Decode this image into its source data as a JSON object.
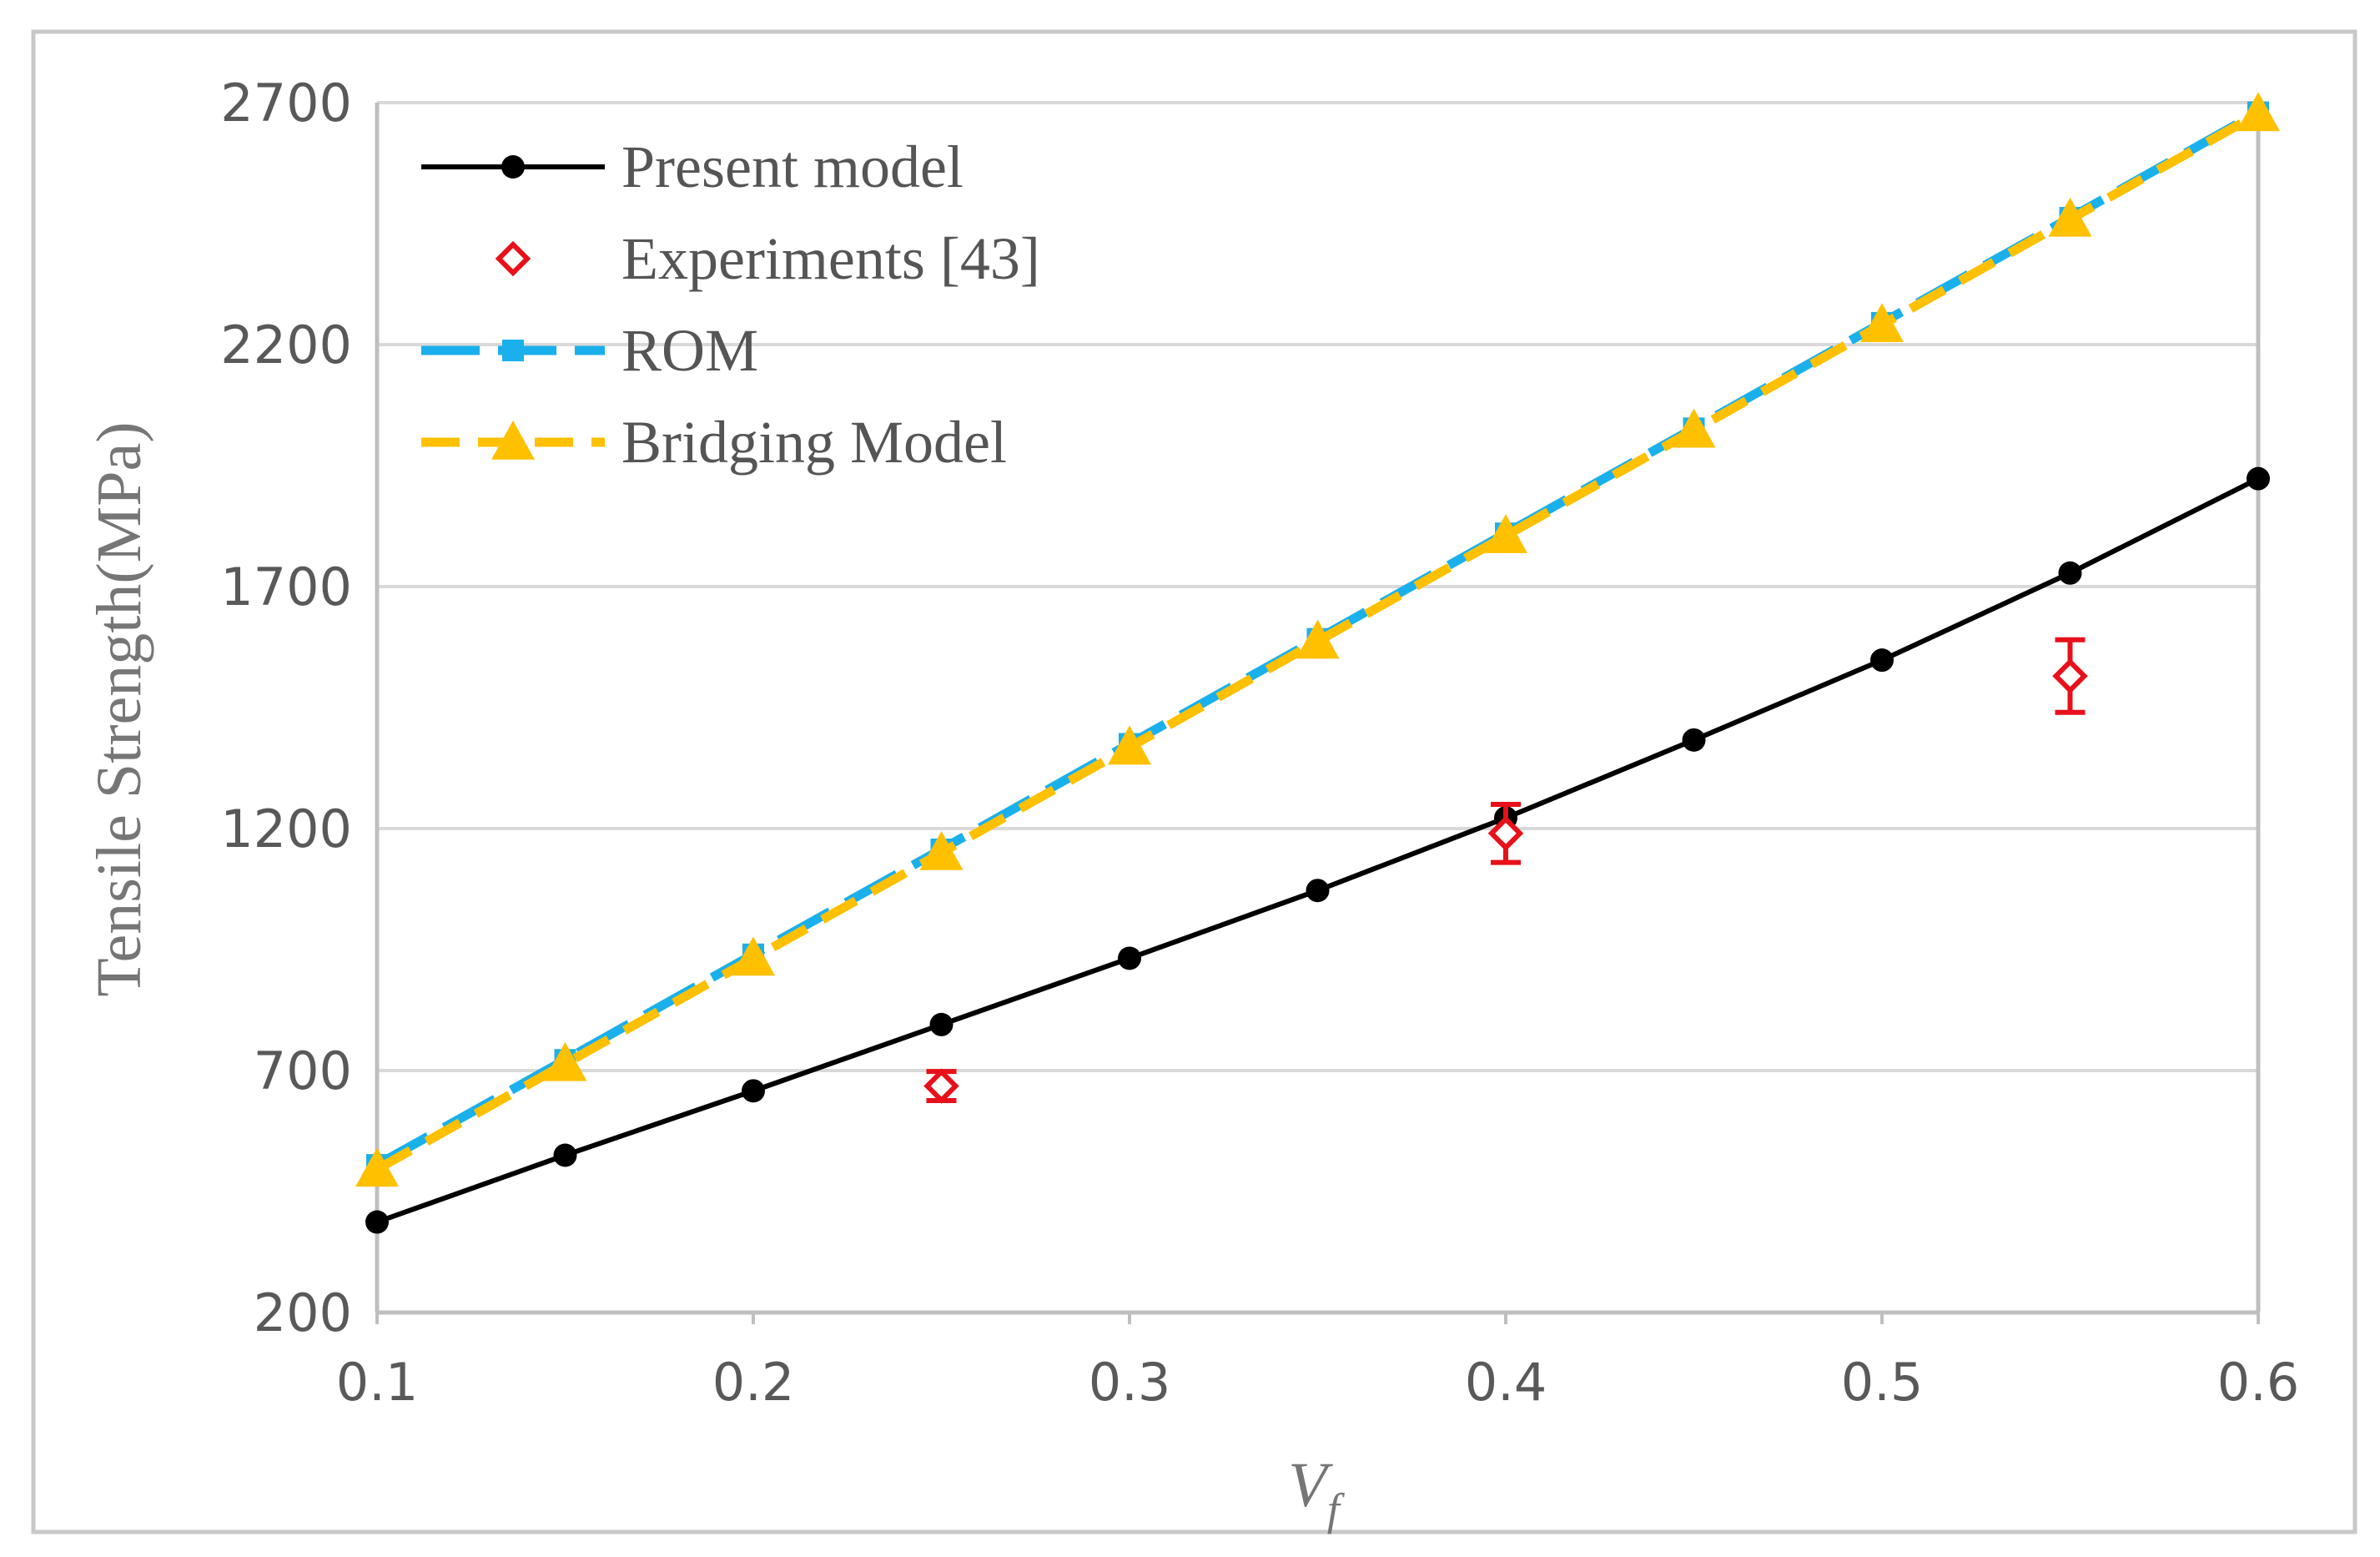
{
  "chart_data": {
    "type": "line",
    "xlabel": "V",
    "xlabel_sub": "f",
    "ylabel": "Tensile Strength(MPa)",
    "xlim": [
      0.1,
      0.6
    ],
    "ylim": [
      200,
      2700
    ],
    "xticks": [
      "0.1",
      "0.2",
      "0.3",
      "0.4",
      "0.5",
      "0.6"
    ],
    "xtick_values": [
      0.1,
      0.2,
      0.3,
      0.4,
      0.5,
      0.6
    ],
    "yticks": [
      "200",
      "700",
      "1200",
      "1700",
      "2200",
      "2700"
    ],
    "ytick_values": [
      200,
      700,
      1200,
      1700,
      2200,
      2700
    ],
    "grid": "horizontal",
    "legend_position": "top-left",
    "series": [
      {
        "name": "Present model",
        "style": "solid",
        "marker": "circle",
        "color": "#000000",
        "x": [
          0.1,
          0.15,
          0.2,
          0.25,
          0.3,
          0.35,
          0.4,
          0.45,
          0.5,
          0.55,
          0.6
        ],
        "y": [
          387,
          525,
          658,
          795,
          932,
          1072,
          1222,
          1383,
          1548,
          1728,
          1923
        ]
      },
      {
        "name": "Experiments [43]",
        "style": "none",
        "marker": "diamond-open",
        "color": "#e8101a",
        "x": [
          0.25,
          0.4,
          0.55
        ],
        "y": [
          668,
          1190,
          1515
        ],
        "yerr": [
          30,
          60,
          75
        ]
      },
      {
        "name": "ROM",
        "style": "long-dash",
        "marker": "square",
        "color": "#1ab0ec",
        "x": [
          0.1,
          0.15,
          0.2,
          0.25,
          0.3,
          0.35,
          0.4,
          0.45,
          0.5,
          0.55,
          0.6
        ],
        "y": [
          505,
          722,
          940,
          1157,
          1375,
          1592,
          1810,
          2027,
          2245,
          2462,
          2680
        ]
      },
      {
        "name": "Bridging Model",
        "style": "dash",
        "marker": "triangle",
        "color": "#ffc000",
        "x": [
          0.1,
          0.15,
          0.2,
          0.25,
          0.3,
          0.35,
          0.4,
          0.45,
          0.5,
          0.55,
          0.6
        ],
        "y": [
          496,
          714,
          932,
          1150,
          1368,
          1587,
          1805,
          2023,
          2241,
          2459,
          2677
        ]
      }
    ]
  }
}
